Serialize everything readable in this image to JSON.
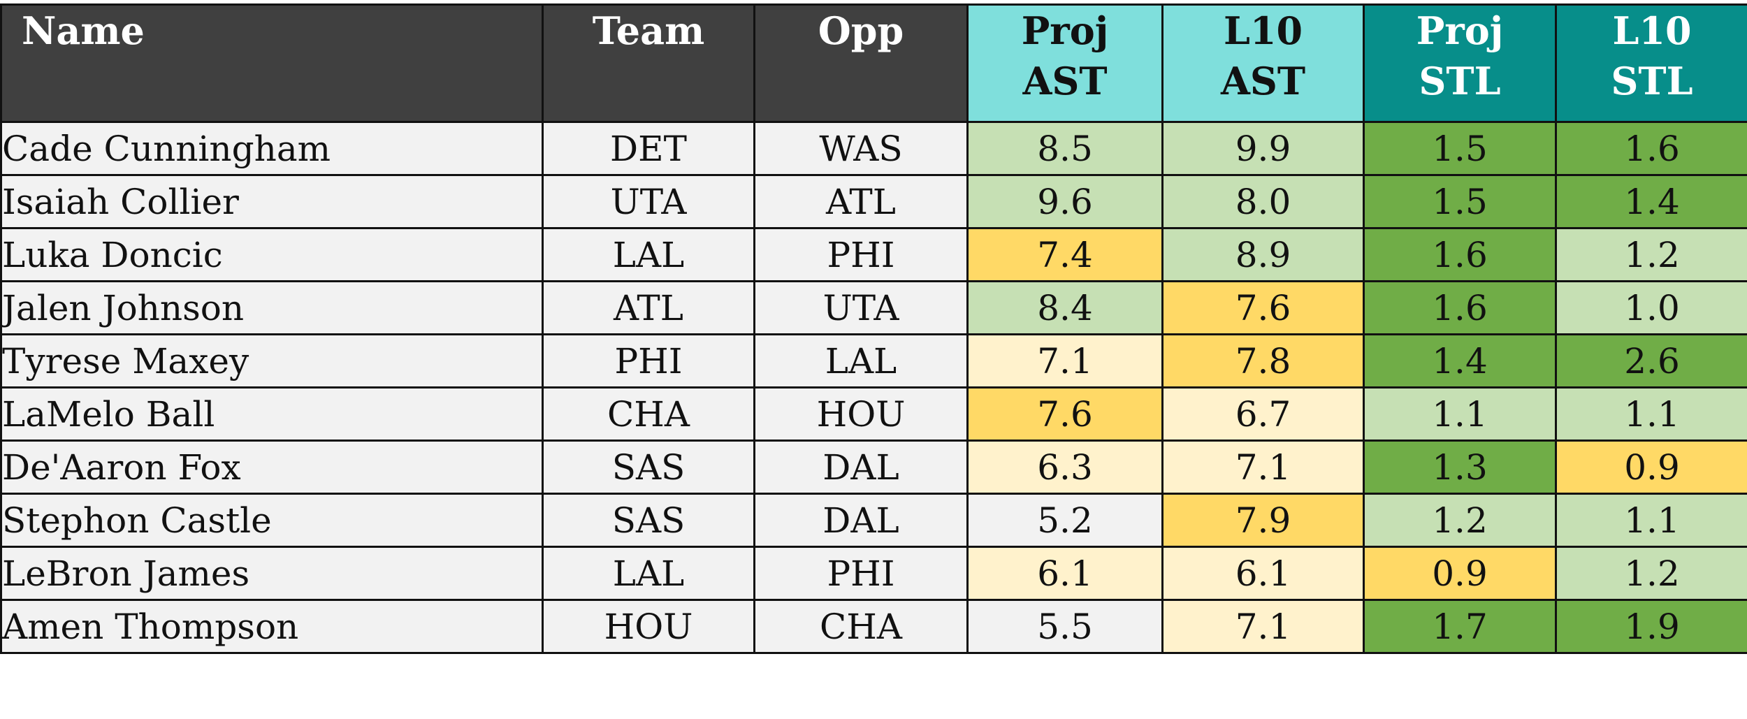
{
  "headers": {
    "name": "Name",
    "team": "Team",
    "opp": "Opp",
    "proj_ast": [
      "Proj",
      "AST"
    ],
    "l10_ast": [
      "L10",
      "AST"
    ],
    "proj_stl": [
      "Proj",
      "STL"
    ],
    "l10_stl": [
      "L10",
      "STL"
    ]
  },
  "colors": {
    "header_dark": "#404040",
    "header_ast": "#7fdfdc",
    "header_stl": "#078e8a",
    "text_cell_bg": "#f2f2f2",
    "scale": {
      "white": "#f2f2f2",
      "cream": "#fff2cc",
      "yellow": "#ffd966",
      "light_green": "#c6e0b4",
      "green": "#70ad47"
    }
  },
  "rows": [
    {
      "name": "Cade Cunningham",
      "team": "DET",
      "opp": "WAS",
      "proj_ast": "8.5",
      "l10_ast": "9.9",
      "proj_stl": "1.5",
      "l10_stl": "1.6",
      "shade": [
        "light_green",
        "light_green",
        "green",
        "green"
      ]
    },
    {
      "name": "Isaiah Collier",
      "team": "UTA",
      "opp": "ATL",
      "proj_ast": "9.6",
      "l10_ast": "8.0",
      "proj_stl": "1.5",
      "l10_stl": "1.4",
      "shade": [
        "light_green",
        "light_green",
        "green",
        "green"
      ]
    },
    {
      "name": "Luka Doncic",
      "team": "LAL",
      "opp": "PHI",
      "proj_ast": "7.4",
      "l10_ast": "8.9",
      "proj_stl": "1.6",
      "l10_stl": "1.2",
      "shade": [
        "yellow",
        "light_green",
        "green",
        "light_green"
      ]
    },
    {
      "name": "Jalen Johnson",
      "team": "ATL",
      "opp": "UTA",
      "proj_ast": "8.4",
      "l10_ast": "7.6",
      "proj_stl": "1.6",
      "l10_stl": "1.0",
      "shade": [
        "light_green",
        "yellow",
        "green",
        "light_green"
      ]
    },
    {
      "name": "Tyrese Maxey",
      "team": "PHI",
      "opp": "LAL",
      "proj_ast": "7.1",
      "l10_ast": "7.8",
      "proj_stl": "1.4",
      "l10_stl": "2.6",
      "shade": [
        "cream",
        "yellow",
        "green",
        "green"
      ]
    },
    {
      "name": "LaMelo Ball",
      "team": "CHA",
      "opp": "HOU",
      "proj_ast": "7.6",
      "l10_ast": "6.7",
      "proj_stl": "1.1",
      "l10_stl": "1.1",
      "shade": [
        "yellow",
        "cream",
        "light_green",
        "light_green"
      ]
    },
    {
      "name": "De'Aaron Fox",
      "team": "SAS",
      "opp": "DAL",
      "proj_ast": "6.3",
      "l10_ast": "7.1",
      "proj_stl": "1.3",
      "l10_stl": "0.9",
      "shade": [
        "cream",
        "cream",
        "green",
        "yellow"
      ]
    },
    {
      "name": "Stephon Castle",
      "team": "SAS",
      "opp": "DAL",
      "proj_ast": "5.2",
      "l10_ast": "7.9",
      "proj_stl": "1.2",
      "l10_stl": "1.1",
      "shade": [
        "white",
        "yellow",
        "light_green",
        "light_green"
      ]
    },
    {
      "name": "LeBron James",
      "team": "LAL",
      "opp": "PHI",
      "proj_ast": "6.1",
      "l10_ast": "6.1",
      "proj_stl": "0.9",
      "l10_stl": "1.2",
      "shade": [
        "cream",
        "cream",
        "yellow",
        "light_green"
      ]
    },
    {
      "name": "Amen Thompson",
      "team": "HOU",
      "opp": "CHA",
      "proj_ast": "5.5",
      "l10_ast": "7.1",
      "proj_stl": "1.7",
      "l10_stl": "1.9",
      "shade": [
        "white",
        "cream",
        "green",
        "green"
      ]
    }
  ]
}
